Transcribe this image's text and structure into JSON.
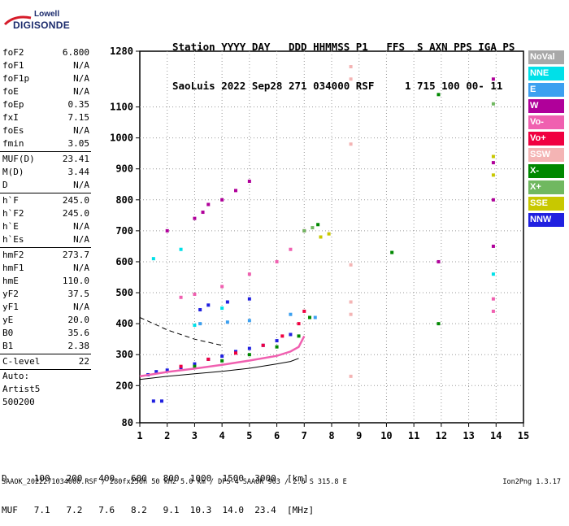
{
  "logo": {
    "line1": "Lowell",
    "line2": "DIGISONDE"
  },
  "header": {
    "labels": "Station YYYY DAY   DDD HHMMSS P1   FFS  S AXN PPS IGA PS",
    "values": "SaoLuis 2022 Sep28 271 034000 RSF     1 715 100 00- 11"
  },
  "params": [
    {
      "name": "foF2",
      "value": "6.800"
    },
    {
      "name": "foF1",
      "value": "N/A"
    },
    {
      "name": "foF1p",
      "value": "N/A"
    },
    {
      "name": "foE",
      "value": "N/A"
    },
    {
      "name": "foEp",
      "value": "0.35"
    },
    {
      "name": "fxI",
      "value": "7.15"
    },
    {
      "name": "foEs",
      "value": "N/A"
    },
    {
      "name": "fmin",
      "value": "3.05"
    },
    {
      "name": "MUF(D)",
      "value": "23.41",
      "sep": true
    },
    {
      "name": "M(D)",
      "value": "3.44"
    },
    {
      "name": "D",
      "value": "N/A"
    },
    {
      "name": "h`F",
      "value": "245.0",
      "sep": true
    },
    {
      "name": "h`F2",
      "value": "245.0"
    },
    {
      "name": "h`E",
      "value": "N/A"
    },
    {
      "name": "h`Es",
      "value": "N/A"
    },
    {
      "name": "hmF2",
      "value": "273.7",
      "sep": true
    },
    {
      "name": "hmF1",
      "value": "N/A"
    },
    {
      "name": "hmE",
      "value": "110.0"
    },
    {
      "name": "yF2",
      "value": "37.5"
    },
    {
      "name": "yF1",
      "value": "N/A"
    },
    {
      "name": "yE",
      "value": "20.0"
    },
    {
      "name": "B0",
      "value": "35.6"
    },
    {
      "name": "B1",
      "value": "2.38"
    },
    {
      "name": "C-level",
      "value": "22",
      "sep": true
    }
  ],
  "auto": [
    "Auto:",
    "Artist5",
    "500200"
  ],
  "legend": [
    {
      "label": "NoVal",
      "color": "#a8a8a8"
    },
    {
      "label": "NNE",
      "color": "#00e0e8"
    },
    {
      "label": "E",
      "color": "#3ca0f0"
    },
    {
      "label": "W",
      "color": "#b0009a"
    },
    {
      "label": "Vo-",
      "color": "#f060b0"
    },
    {
      "label": "Vo+",
      "color": "#f00040"
    },
    {
      "label": "SSW",
      "color": "#f4b4b4"
    },
    {
      "label": "X-",
      "color": "#008800"
    },
    {
      "label": "X+",
      "color": "#70b860"
    },
    {
      "label": "SSE",
      "color": "#c8c800"
    },
    {
      "label": "NNW",
      "color": "#2020e0"
    }
  ],
  "chart_data": {
    "type": "scatter",
    "xlim": [
      1,
      15
    ],
    "ylim": [
      80,
      1280
    ],
    "x_ticks": [
      "1",
      "2",
      "3",
      "4",
      "5",
      "6",
      "7",
      "8",
      "9",
      "10",
      "11",
      "12",
      "13",
      "14",
      "15"
    ],
    "y_ticks": [
      "80",
      "200",
      "300",
      "400",
      "500",
      "600",
      "700",
      "800",
      "900",
      "1000",
      "1100",
      "1280"
    ],
    "y_tick_values": [
      80,
      200,
      300,
      400,
      500,
      600,
      700,
      800,
      900,
      1000,
      1100,
      1280
    ],
    "grid": true,
    "series": [
      {
        "name": "NNW",
        "color": "#2020e0",
        "points": [
          [
            1.3,
            235
          ],
          [
            1.6,
            245
          ],
          [
            2.0,
            250
          ],
          [
            2.5,
            258
          ],
          [
            3.0,
            270
          ],
          [
            3.5,
            285
          ],
          [
            4.0,
            295
          ],
          [
            4.5,
            310
          ],
          [
            5.0,
            320
          ],
          [
            5.5,
            330
          ],
          [
            6.0,
            345
          ],
          [
            6.5,
            365
          ],
          [
            1.5,
            150
          ],
          [
            1.8,
            150
          ],
          [
            3.2,
            445
          ],
          [
            3.5,
            460
          ],
          [
            4.2,
            470
          ],
          [
            5.0,
            480
          ]
        ]
      },
      {
        "name": "Vo+",
        "color": "#f00040",
        "points": [
          [
            2.5,
            262
          ],
          [
            3.5,
            285
          ],
          [
            4.5,
            305
          ],
          [
            5.5,
            330
          ],
          [
            6.2,
            360
          ],
          [
            6.8,
            400
          ],
          [
            7.0,
            440
          ]
        ]
      },
      {
        "name": "W",
        "color": "#b0009a",
        "points": [
          [
            3.0,
            740
          ],
          [
            3.3,
            760
          ],
          [
            3.5,
            785
          ],
          [
            4.0,
            800
          ],
          [
            4.5,
            830
          ],
          [
            5.0,
            860
          ],
          [
            2.0,
            700
          ],
          [
            13.9,
            1190
          ],
          [
            13.9,
            920
          ],
          [
            13.9,
            800
          ],
          [
            13.9,
            650
          ],
          [
            11.9,
            600
          ]
        ]
      },
      {
        "name": "Vo-",
        "color": "#f060b0",
        "points": [
          [
            2.5,
            485
          ],
          [
            3.0,
            495
          ],
          [
            4.0,
            520
          ],
          [
            5.0,
            560
          ],
          [
            6.0,
            600
          ],
          [
            6.5,
            640
          ],
          [
            7.0,
            700
          ],
          [
            13.9,
            480
          ],
          [
            13.9,
            440
          ]
        ]
      },
      {
        "name": "X-",
        "color": "#008800",
        "points": [
          [
            3.0,
            262
          ],
          [
            4.0,
            280
          ],
          [
            5.0,
            300
          ],
          [
            6.0,
            325
          ],
          [
            6.8,
            360
          ],
          [
            7.2,
            420
          ],
          [
            7.5,
            720
          ],
          [
            10.2,
            630
          ],
          [
            11.9,
            1140
          ],
          [
            11.9,
            400
          ]
        ]
      },
      {
        "name": "E",
        "color": "#3ca0f0",
        "points": [
          [
            3.2,
            400
          ],
          [
            4.2,
            405
          ],
          [
            5.0,
            410
          ],
          [
            6.5,
            430
          ],
          [
            7.4,
            420
          ]
        ]
      },
      {
        "name": "NNE",
        "color": "#00e0e8",
        "points": [
          [
            1.5,
            610
          ],
          [
            2.5,
            640
          ],
          [
            3.0,
            395
          ],
          [
            4.0,
            450
          ],
          [
            13.9,
            560
          ]
        ]
      },
      {
        "name": "SSE",
        "color": "#c8c800",
        "points": [
          [
            7.6,
            680
          ],
          [
            7.9,
            690
          ],
          [
            13.9,
            940
          ],
          [
            13.9,
            880
          ]
        ]
      },
      {
        "name": "SSW",
        "color": "#f4b4b4",
        "points": [
          [
            8.7,
            1230
          ],
          [
            8.7,
            1190
          ],
          [
            8.7,
            980
          ],
          [
            8.7,
            470
          ],
          [
            8.7,
            430
          ],
          [
            8.7,
            230
          ],
          [
            8.7,
            590
          ]
        ]
      },
      {
        "name": "X+",
        "color": "#70b860",
        "points": [
          [
            7.0,
            700
          ],
          [
            7.3,
            710
          ],
          [
            13.9,
            1110
          ]
        ]
      }
    ],
    "profile_line": [
      [
        1.0,
        230
      ],
      [
        2.0,
        244
      ],
      [
        3.0,
        255
      ],
      [
        4.0,
        267
      ],
      [
        5.0,
        281
      ],
      [
        6.0,
        296
      ],
      [
        6.5,
        310
      ],
      [
        6.8,
        325
      ],
      [
        7.0,
        360
      ]
    ],
    "x_trace_dashed": [
      [
        1.0,
        420
      ],
      [
        1.5,
        400
      ],
      [
        2.0,
        380
      ],
      [
        2.5,
        365
      ],
      [
        3.0,
        350
      ],
      [
        3.5,
        340
      ],
      [
        4.0,
        330
      ]
    ],
    "x_trace_solid": [
      [
        1.0,
        220
      ],
      [
        2.0,
        230
      ],
      [
        3.0,
        238
      ],
      [
        4.0,
        246
      ],
      [
        5.0,
        256
      ],
      [
        6.0,
        270
      ],
      [
        6.5,
        278
      ],
      [
        6.8,
        288
      ]
    ]
  },
  "bottom": {
    "d_row": "D     100   200   400   600   800  1000  1500  3000  [km]",
    "muf_row": "MUF   7.1   7.2   7.6   8.2   9.1  10.3  14.0  23.4  [MHz]"
  },
  "footer": {
    "left": "SAAOK_2022271034000.RSF / 280fx256h 50 kHz 5.0 km / DPS-4 SAAOK 903 / 2.6 S 315.8 E",
    "right": "Ion2Png 1.3.17"
  }
}
